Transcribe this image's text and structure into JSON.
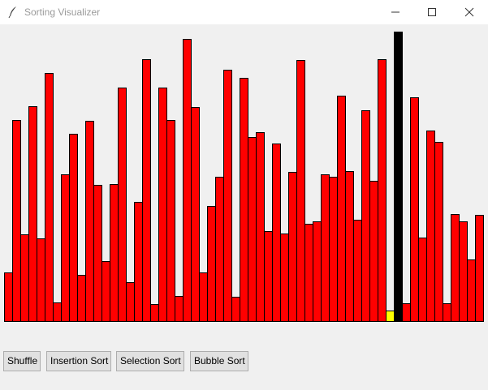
{
  "window": {
    "title": "Sorting Visualizer"
  },
  "buttons": {
    "shuffle": "Shuffle",
    "insertion": "Insertion Sort",
    "selection": "Selection Sort",
    "bubble": "Bubble Sort"
  },
  "colors": {
    "bar": "#ff0000",
    "highlight_black": "#000000",
    "highlight_yellow": "#ffff00",
    "background": "#f0f0f0"
  },
  "chart_data": {
    "type": "bar",
    "ylim": [
      0,
      360
    ],
    "values": [
      60,
      248,
      107,
      265,
      102,
      306,
      23,
      181,
      231,
      57,
      247,
      168,
      74,
      169,
      288,
      48,
      147,
      323,
      21,
      288,
      248,
      31,
      348,
      264,
      60,
      142,
      178,
      310,
      30,
      300,
      227,
      233,
      111,
      219,
      108,
      184,
      322,
      120,
      123,
      181,
      178,
      278,
      185,
      125,
      260,
      173,
      323,
      13,
      357,
      22,
      276,
      103,
      235,
      221,
      22,
      132,
      123,
      76,
      131
    ],
    "highlight_black_index": 48,
    "highlight_yellow_index": 47
  }
}
